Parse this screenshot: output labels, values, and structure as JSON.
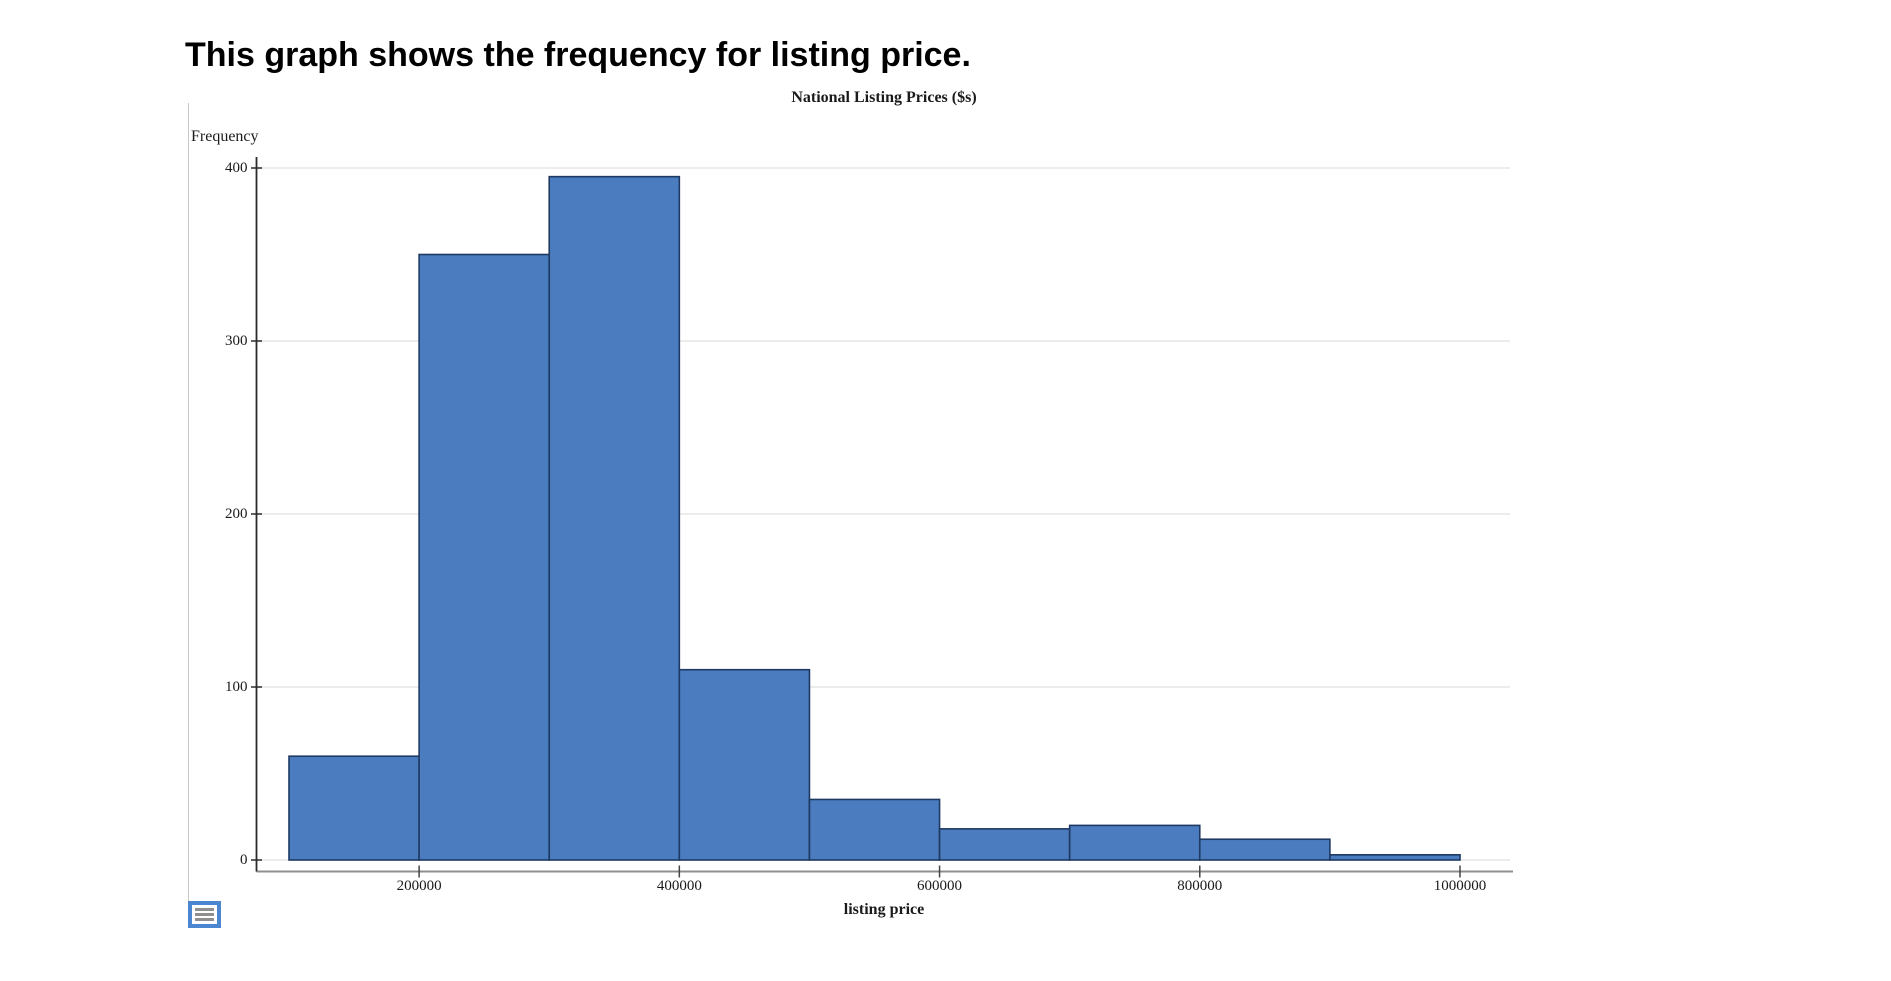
{
  "heading": {
    "text": "This graph shows the frequency for listing price."
  },
  "chart_data": {
    "type": "histogram",
    "title": "National Listing Prices ($s)",
    "xlabel": "listing price",
    "ylabel": "Frequency",
    "bin_width": 100000,
    "bin_edges": [
      100000,
      200000,
      300000,
      400000,
      500000,
      600000,
      700000,
      800000,
      900000,
      1000000
    ],
    "frequencies": [
      60,
      350,
      395,
      110,
      35,
      18,
      20,
      12,
      3
    ],
    "x_ticks": [
      200000,
      400000,
      600000,
      800000,
      1000000
    ],
    "x_tick_labels": [
      "200000",
      "400000",
      "600000",
      "800000",
      "1000000"
    ],
    "y_ticks": [
      0,
      100,
      200,
      300,
      400
    ],
    "y_tick_labels": [
      "0",
      "100",
      "200",
      "300",
      "400"
    ],
    "xlim": [
      100000,
      1000000
    ],
    "ylim": [
      0,
      400
    ],
    "grid": "horizontal-light",
    "legend_position": "none",
    "colors": {
      "bar_fill": "#4a7cbf",
      "bar_border": "#1e3a63",
      "gridline": "#e0e0e0",
      "axis": "#2b2b2b",
      "baseline": "#8f8f8f"
    }
  },
  "widget": {
    "icon": "list-lines-icon",
    "border_color": "#4d86d0",
    "line_color": "#8f8f8f"
  }
}
